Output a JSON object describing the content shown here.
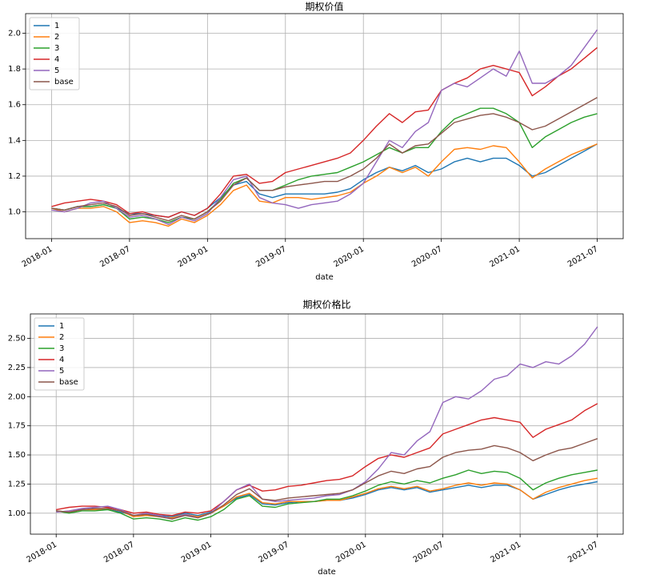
{
  "chart_data": [
    {
      "type": "line",
      "title": "期权价值",
      "x_label": "date",
      "x": [
        "2018-01",
        "2018-02",
        "2018-03",
        "2018-04",
        "2018-05",
        "2018-06",
        "2018-07",
        "2018-08",
        "2018-09",
        "2018-10",
        "2018-11",
        "2018-12",
        "2019-01",
        "2019-02",
        "2019-03",
        "2019-04",
        "2019-05",
        "2019-06",
        "2019-07",
        "2019-08",
        "2019-09",
        "2019-10",
        "2019-11",
        "2019-12",
        "2020-01",
        "2020-02",
        "2020-03",
        "2020-04",
        "2020-05",
        "2020-06",
        "2020-07",
        "2020-08",
        "2020-09",
        "2020-10",
        "2020-11",
        "2020-12",
        "2021-01",
        "2021-02",
        "2021-03",
        "2021-04",
        "2021-05",
        "2021-06",
        "2021-07"
      ],
      "xlim": [
        "2017-11",
        "2021-09"
      ],
      "xticks": [
        "2018-01",
        "2018-07",
        "2019-01",
        "2019-07",
        "2020-01",
        "2020-07",
        "2021-01",
        "2021-07"
      ],
      "ylim": [
        0.85,
        2.11
      ],
      "yticks": [
        {
          "value": 1,
          "label": "1.0"
        },
        1.2,
        1.4,
        1.6,
        1.8,
        {
          "value": 2,
          "label": "2.0"
        }
      ],
      "grid": true,
      "legend": "upper-left",
      "series": [
        {
          "name": "1",
          "color": "#1f77b4",
          "values": [
            1.02,
            1.01,
            1.03,
            1.03,
            1.04,
            1.02,
            0.99,
            0.99,
            0.98,
            0.97,
            1.0,
            0.98,
            1.02,
            1.08,
            1.15,
            1.17,
            1.1,
            1.08,
            1.1,
            1.1,
            1.1,
            1.1,
            1.11,
            1.13,
            1.18,
            1.22,
            1.25,
            1.23,
            1.26,
            1.22,
            1.24,
            1.28,
            1.3,
            1.28,
            1.3,
            1.3,
            1.26,
            1.2,
            1.22,
            1.26,
            1.3,
            1.34,
            1.38
          ]
        },
        {
          "name": "2",
          "color": "#ff7f0e",
          "values": [
            1.02,
            1.0,
            1.02,
            1.02,
            1.03,
            1.0,
            0.94,
            0.95,
            0.94,
            0.92,
            0.96,
            0.94,
            0.98,
            1.04,
            1.12,
            1.15,
            1.06,
            1.05,
            1.08,
            1.08,
            1.07,
            1.08,
            1.09,
            1.11,
            1.16,
            1.2,
            1.25,
            1.22,
            1.25,
            1.2,
            1.28,
            1.35,
            1.36,
            1.35,
            1.37,
            1.36,
            1.28,
            1.19,
            1.24,
            1.28,
            1.32,
            1.35,
            1.38
          ]
        },
        {
          "name": "3",
          "color": "#2ca02c",
          "values": [
            1.02,
            1.01,
            1.03,
            1.03,
            1.04,
            1.02,
            0.96,
            0.97,
            0.96,
            0.94,
            0.97,
            0.96,
            1.0,
            1.07,
            1.16,
            1.19,
            1.12,
            1.12,
            1.15,
            1.18,
            1.2,
            1.21,
            1.22,
            1.25,
            1.28,
            1.32,
            1.36,
            1.33,
            1.36,
            1.36,
            1.45,
            1.52,
            1.55,
            1.58,
            1.58,
            1.55,
            1.5,
            1.36,
            1.42,
            1.46,
            1.5,
            1.53,
            1.55
          ]
        },
        {
          "name": "4",
          "color": "#d62728",
          "values": [
            1.03,
            1.05,
            1.06,
            1.07,
            1.06,
            1.04,
            0.99,
            1.0,
            0.98,
            0.97,
            1.0,
            0.98,
            1.02,
            1.1,
            1.2,
            1.21,
            1.16,
            1.17,
            1.22,
            1.24,
            1.26,
            1.28,
            1.3,
            1.33,
            1.4,
            1.48,
            1.55,
            1.5,
            1.56,
            1.57,
            1.68,
            1.72,
            1.75,
            1.8,
            1.82,
            1.8,
            1.78,
            1.65,
            1.7,
            1.76,
            1.8,
            1.86,
            1.92
          ]
        },
        {
          "name": "5",
          "color": "#9467bd",
          "values": [
            1.01,
            1.0,
            1.02,
            1.05,
            1.06,
            1.02,
            0.97,
            0.98,
            0.96,
            0.93,
            0.97,
            0.95,
            0.99,
            1.08,
            1.18,
            1.2,
            1.08,
            1.05,
            1.04,
            1.02,
            1.04,
            1.05,
            1.06,
            1.1,
            1.16,
            1.28,
            1.4,
            1.36,
            1.45,
            1.5,
            1.68,
            1.72,
            1.7,
            1.75,
            1.8,
            1.76,
            1.9,
            1.72,
            1.72,
            1.76,
            1.82,
            1.92,
            2.02
          ]
        },
        {
          "name": "base",
          "color": "#8c564b",
          "values": [
            1.02,
            1.01,
            1.03,
            1.04,
            1.05,
            1.03,
            0.98,
            0.99,
            0.97,
            0.95,
            0.98,
            0.96,
            1.0,
            1.06,
            1.15,
            1.19,
            1.12,
            1.12,
            1.14,
            1.15,
            1.16,
            1.17,
            1.17,
            1.2,
            1.24,
            1.3,
            1.38,
            1.33,
            1.37,
            1.38,
            1.44,
            1.5,
            1.52,
            1.54,
            1.55,
            1.53,
            1.5,
            1.46,
            1.48,
            1.52,
            1.56,
            1.6,
            1.64
          ]
        }
      ]
    },
    {
      "type": "line",
      "title": "期权价格比",
      "x_label": "date",
      "x": [
        "2018-01",
        "2018-02",
        "2018-03",
        "2018-04",
        "2018-05",
        "2018-06",
        "2018-07",
        "2018-08",
        "2018-09",
        "2018-10",
        "2018-11",
        "2018-12",
        "2019-01",
        "2019-02",
        "2019-03",
        "2019-04",
        "2019-05",
        "2019-06",
        "2019-07",
        "2019-08",
        "2019-09",
        "2019-10",
        "2019-11",
        "2019-12",
        "2020-01",
        "2020-02",
        "2020-03",
        "2020-04",
        "2020-05",
        "2020-06",
        "2020-07",
        "2020-08",
        "2020-09",
        "2020-10",
        "2020-11",
        "2020-12",
        "2021-01",
        "2021-02",
        "2021-03",
        "2021-04",
        "2021-05",
        "2021-06",
        "2021-07"
      ],
      "xlim": [
        "2017-11",
        "2021-09"
      ],
      "xticks": [
        "2018-01",
        "2018-07",
        "2019-01",
        "2019-07",
        "2020-01",
        "2020-07",
        "2021-01",
        "2021-07"
      ],
      "ylim": [
        0.82,
        2.71
      ],
      "yticks": [
        {
          "value": 1,
          "label": "1.00"
        },
        1.25,
        {
          "value": 1.5,
          "label": "1.50"
        },
        1.75,
        {
          "value": 2,
          "label": "2.00"
        },
        2.25,
        {
          "value": 2.5,
          "label": "2.50"
        }
      ],
      "grid": true,
      "legend": "upper-left",
      "series": [
        {
          "name": "1",
          "color": "#1f77b4",
          "values": [
            1.02,
            1.01,
            1.03,
            1.03,
            1.03,
            1.01,
            0.98,
            0.99,
            0.98,
            0.97,
            1.0,
            0.98,
            1.01,
            1.06,
            1.13,
            1.16,
            1.08,
            1.07,
            1.09,
            1.1,
            1.1,
            1.11,
            1.11,
            1.13,
            1.16,
            1.2,
            1.22,
            1.2,
            1.22,
            1.18,
            1.2,
            1.22,
            1.24,
            1.22,
            1.24,
            1.24,
            1.2,
            1.12,
            1.16,
            1.2,
            1.23,
            1.25,
            1.27
          ]
        },
        {
          "name": "2",
          "color": "#ff7f0e",
          "values": [
            1.02,
            1.01,
            1.03,
            1.03,
            1.04,
            1.02,
            0.97,
            0.98,
            0.97,
            0.96,
            0.99,
            0.97,
            1.0,
            1.06,
            1.14,
            1.17,
            1.09,
            1.08,
            1.1,
            1.1,
            1.1,
            1.11,
            1.11,
            1.14,
            1.17,
            1.21,
            1.23,
            1.21,
            1.23,
            1.19,
            1.21,
            1.24,
            1.26,
            1.24,
            1.26,
            1.25,
            1.2,
            1.12,
            1.18,
            1.22,
            1.25,
            1.28,
            1.3
          ]
        },
        {
          "name": "3",
          "color": "#2ca02c",
          "values": [
            1.02,
            1.0,
            1.02,
            1.02,
            1.03,
            1.0,
            0.95,
            0.96,
            0.95,
            0.93,
            0.96,
            0.94,
            0.97,
            1.03,
            1.12,
            1.15,
            1.06,
            1.05,
            1.08,
            1.09,
            1.1,
            1.12,
            1.12,
            1.15,
            1.19,
            1.24,
            1.27,
            1.25,
            1.28,
            1.26,
            1.3,
            1.33,
            1.37,
            1.34,
            1.36,
            1.35,
            1.3,
            1.2,
            1.26,
            1.3,
            1.33,
            1.35,
            1.37
          ]
        },
        {
          "name": "4",
          "color": "#d62728",
          "values": [
            1.03,
            1.05,
            1.06,
            1.06,
            1.05,
            1.03,
            1.0,
            1.01,
            0.99,
            0.98,
            1.01,
            1.0,
            1.02,
            1.1,
            1.2,
            1.24,
            1.19,
            1.2,
            1.23,
            1.24,
            1.26,
            1.28,
            1.29,
            1.32,
            1.4,
            1.47,
            1.5,
            1.48,
            1.52,
            1.56,
            1.68,
            1.72,
            1.76,
            1.8,
            1.82,
            1.8,
            1.78,
            1.65,
            1.72,
            1.76,
            1.8,
            1.88,
            1.94
          ]
        },
        {
          "name": "5",
          "color": "#9467bd",
          "values": [
            1.01,
            1.02,
            1.04,
            1.05,
            1.06,
            1.03,
            0.98,
            1.0,
            0.98,
            0.95,
            0.99,
            0.96,
            1.0,
            1.1,
            1.2,
            1.25,
            1.12,
            1.1,
            1.11,
            1.12,
            1.13,
            1.15,
            1.16,
            1.2,
            1.27,
            1.38,
            1.52,
            1.5,
            1.62,
            1.7,
            1.95,
            2.0,
            1.98,
            2.05,
            2.15,
            2.18,
            2.28,
            2.25,
            2.3,
            2.28,
            2.35,
            2.45,
            2.6
          ]
        },
        {
          "name": "base",
          "color": "#8c564b",
          "values": [
            1.02,
            1.01,
            1.03,
            1.04,
            1.04,
            1.02,
            0.98,
            0.99,
            0.97,
            0.95,
            0.98,
            0.96,
            1.0,
            1.07,
            1.16,
            1.21,
            1.12,
            1.11,
            1.13,
            1.14,
            1.15,
            1.16,
            1.17,
            1.2,
            1.26,
            1.32,
            1.36,
            1.34,
            1.38,
            1.4,
            1.48,
            1.52,
            1.54,
            1.55,
            1.58,
            1.56,
            1.52,
            1.45,
            1.5,
            1.54,
            1.56,
            1.6,
            1.64
          ]
        }
      ]
    }
  ]
}
